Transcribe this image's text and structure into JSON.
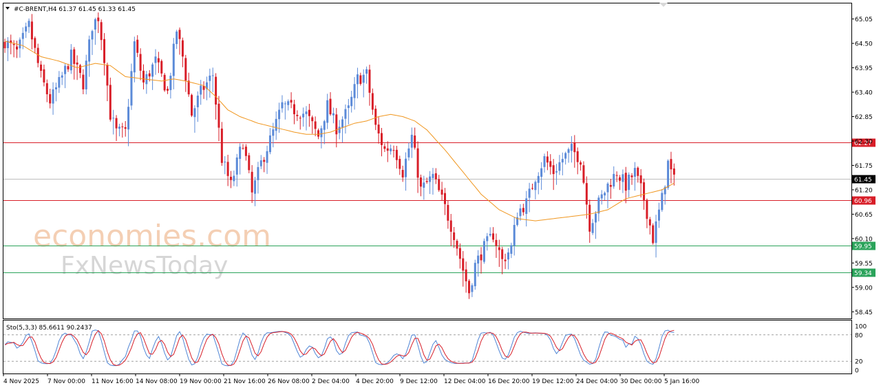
{
  "header": {
    "menu_icon": "triangle-down-icon",
    "symbol_line": "#C-BRENT,H4  61.37 61.45 61.33 61.45"
  },
  "watermark": {
    "line1": "economies.com",
    "line2": "FxNewsToday"
  },
  "colors": {
    "bull": "#5b8ad8",
    "bear": "#d81e28",
    "ma": "#f0961e",
    "level_red": "#d81e28",
    "level_green": "#2aa35a",
    "current_line": "#bdbdbd",
    "stoch_main": "#4f86d6",
    "stoch_signal": "#d81e28"
  },
  "chart_data": [
    {
      "type": "candlestick",
      "symbol": "#C-BRENT",
      "timeframe": "H4",
      "ohlc_last": {
        "open": 61.37,
        "high": 61.45,
        "low": 61.33,
        "close": 61.45
      },
      "ylim": [
        58.3,
        65.4
      ],
      "y_ticks": [
        "65.05",
        "64.50",
        "63.95",
        "63.40",
        "62.85",
        "62.30",
        "61.75",
        "61.20",
        "60.65",
        "60.10",
        "59.55",
        "59.00",
        "58.45"
      ],
      "x_ticks": [
        "4 Nov 2025",
        "7 Nov 00:00",
        "11 Nov 16:00",
        "14 Nov 08:00",
        "19 Nov 00:00",
        "21 Nov 16:00",
        "26 Nov 08:00",
        "2 Dec 04:00",
        "4 Dec 20:00",
        "9 Dec 12:00",
        "12 Dec 04:00",
        "16 Dec 20:00",
        "19 Dec 12:00",
        "24 Dec 04:00",
        "30 Dec 00:00",
        "5 Jan 16:00"
      ],
      "levels": [
        {
          "value": 62.27,
          "label": "62.27",
          "kind": "resistance"
        },
        {
          "value": 61.45,
          "label": "61.45",
          "kind": "current"
        },
        {
          "value": 60.96,
          "label": "60.96",
          "kind": "resistance"
        },
        {
          "value": 59.95,
          "label": "59.95",
          "kind": "support"
        },
        {
          "value": 59.34,
          "label": "59.34",
          "kind": "support"
        }
      ],
      "price_path": [
        [
          0,
          64.55
        ],
        [
          4,
          64.3
        ],
        [
          8,
          64.9
        ],
        [
          12,
          63.75
        ],
        [
          15,
          63.2
        ],
        [
          18,
          63.6
        ],
        [
          22,
          64.2
        ],
        [
          26,
          63.6
        ],
        [
          29,
          64.9
        ],
        [
          31,
          65.1
        ],
        [
          33,
          64.2
        ],
        [
          35,
          62.9
        ],
        [
          37,
          62.5
        ],
        [
          40,
          62.5
        ],
        [
          43,
          64.5
        ],
        [
          46,
          63.6
        ],
        [
          50,
          64.1
        ],
        [
          54,
          63.4
        ],
        [
          57,
          64.8
        ],
        [
          59,
          64.2
        ],
        [
          62,
          62.9
        ],
        [
          65,
          63.4
        ],
        [
          69,
          63.8
        ],
        [
          72,
          61.9
        ],
        [
          75,
          61.3
        ],
        [
          79,
          62.3
        ],
        [
          82,
          61.1
        ],
        [
          85,
          61.8
        ],
        [
          89,
          62.5
        ],
        [
          92,
          63.1
        ],
        [
          96,
          63.0
        ],
        [
          100,
          62.9
        ],
        [
          104,
          62.4
        ],
        [
          107,
          63.1
        ],
        [
          110,
          62.6
        ],
        [
          114,
          63.0
        ],
        [
          117,
          63.7
        ],
        [
          120,
          63.8
        ],
        [
          123,
          62.6
        ],
        [
          126,
          62.1
        ],
        [
          129,
          62.2
        ],
        [
          132,
          61.6
        ],
        [
          135,
          62.4
        ],
        [
          138,
          61.2
        ],
        [
          142,
          61.5
        ],
        [
          146,
          60.8
        ],
        [
          149,
          60.2
        ],
        [
          152,
          59.4
        ],
        [
          154,
          58.9
        ],
        [
          156,
          59.5
        ],
        [
          159,
          59.9
        ],
        [
          162,
          60.2
        ],
        [
          165,
          59.6
        ],
        [
          168,
          59.9
        ],
        [
          170,
          60.7
        ],
        [
          173,
          60.9
        ],
        [
          176,
          61.5
        ],
        [
          179,
          61.9
        ],
        [
          182,
          61.6
        ],
        [
          185,
          61.9
        ],
        [
          188,
          62.1
        ],
        [
          191,
          61.9
        ],
        [
          194,
          60.4
        ],
        [
          197,
          60.9
        ],
        [
          200,
          61.3
        ],
        [
          203,
          61.6
        ],
        [
          206,
          61.3
        ],
        [
          209,
          61.6
        ],
        [
          212,
          61.0
        ],
        [
          215,
          60.1
        ],
        [
          218,
          61.0
        ],
        [
          220,
          61.8
        ],
        [
          222,
          61.4
        ]
      ],
      "ma_path": [
        [
          0,
          64.55
        ],
        [
          6,
          64.45
        ],
        [
          12,
          64.2
        ],
        [
          18,
          64.1
        ],
        [
          24,
          63.95
        ],
        [
          30,
          64.05
        ],
        [
          35,
          64.0
        ],
        [
          40,
          63.75
        ],
        [
          46,
          63.7
        ],
        [
          52,
          63.65
        ],
        [
          56,
          63.7
        ],
        [
          60,
          63.65
        ],
        [
          66,
          63.55
        ],
        [
          70,
          63.3
        ],
        [
          74,
          63.0
        ],
        [
          78,
          62.85
        ],
        [
          84,
          62.7
        ],
        [
          90,
          62.6
        ],
        [
          96,
          62.5
        ],
        [
          100,
          62.45
        ],
        [
          104,
          62.45
        ],
        [
          108,
          62.5
        ],
        [
          112,
          62.6
        ],
        [
          116,
          62.7
        ],
        [
          120,
          62.75
        ],
        [
          124,
          62.85
        ],
        [
          128,
          62.9
        ],
        [
          132,
          62.85
        ],
        [
          136,
          62.75
        ],
        [
          140,
          62.55
        ],
        [
          146,
          62.1
        ],
        [
          152,
          61.6
        ],
        [
          158,
          61.1
        ],
        [
          164,
          60.75
        ],
        [
          170,
          60.55
        ],
        [
          176,
          60.5
        ],
        [
          182,
          60.55
        ],
        [
          188,
          60.6
        ],
        [
          194,
          60.65
        ],
        [
          200,
          60.75
        ],
        [
          206,
          61.0
        ],
        [
          212,
          61.1
        ],
        [
          218,
          61.2
        ],
        [
          222,
          61.35
        ]
      ],
      "wick_range": [
        0.15,
        0.35
      ]
    },
    {
      "type": "line",
      "indicator": "Stochastic",
      "label": "Sto(5,3,3) 85.6611 90.2437",
      "main": 85.6611,
      "signal": 90.2437,
      "ylim": [
        0,
        100
      ],
      "levels": [
        20,
        80
      ],
      "y_ticks": [
        "100",
        "80",
        "20",
        "0"
      ]
    }
  ]
}
